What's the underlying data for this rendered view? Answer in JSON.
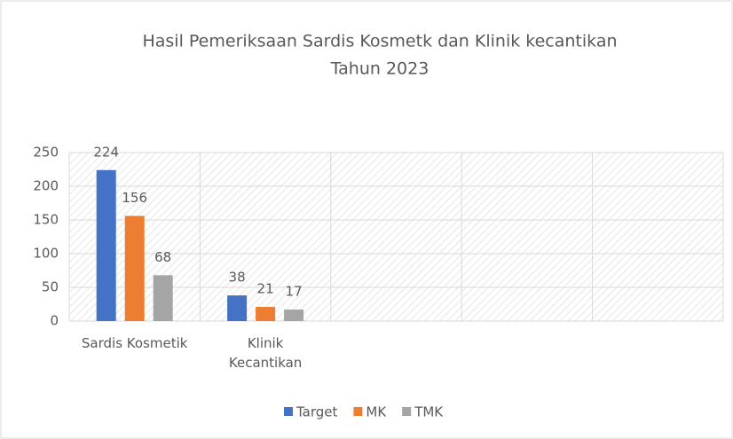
{
  "chart_data": {
    "type": "bar",
    "title": [
      "Hasil Pemeriksaan Sardis Kosmetk dan Klinik kecantikan",
      "Tahun 2023"
    ],
    "categories": [
      "Sardis Kosmetik",
      "Klinik Kecantikan",
      null,
      null,
      null
    ],
    "series": [
      {
        "name": "Target",
        "color": "#4472c4",
        "values": [
          224,
          38,
          null,
          null,
          null
        ]
      },
      {
        "name": "MK",
        "color": "#ed7d31",
        "values": [
          156,
          21,
          null,
          null,
          null
        ]
      },
      {
        "name": "TMK",
        "color": "#a5a5a5",
        "values": [
          68,
          17,
          null,
          null,
          null
        ]
      }
    ],
    "ylim": [
      0,
      250
    ],
    "yticks": [
      0,
      50,
      100,
      150,
      200,
      250
    ],
    "grid": true,
    "legend": "bottom"
  }
}
